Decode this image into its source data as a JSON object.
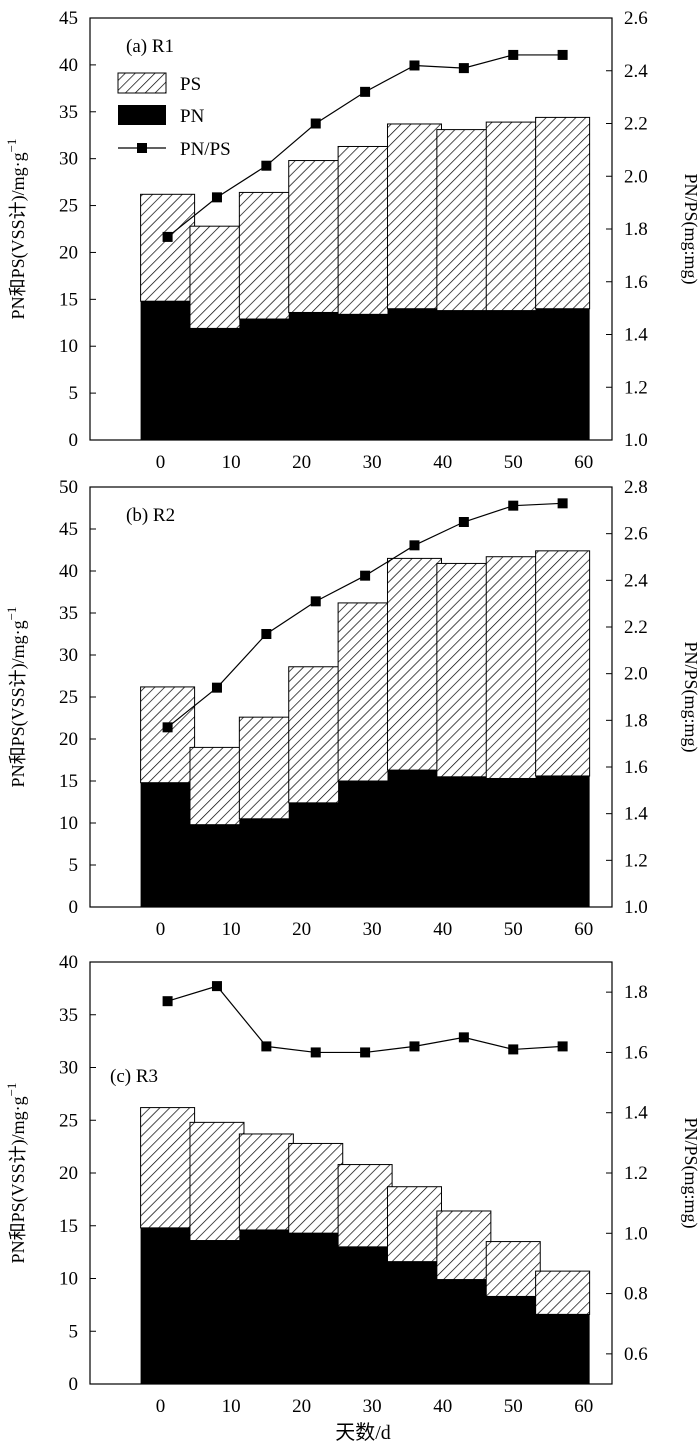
{
  "figure": {
    "x_axis_title": "天数/d",
    "colors": {
      "ps_hatch": "#000000",
      "pn_fill": "#000000",
      "line": "#000000",
      "background": "#ffffff"
    }
  },
  "chart_data": [
    {
      "type": "bar",
      "panel_label": "(a) R1",
      "x": [
        1,
        8,
        15,
        22,
        29,
        36,
        43,
        50,
        57
      ],
      "series": [
        {
          "name": "PN",
          "kind": "bar-stack",
          "values": [
            14.8,
            11.9,
            12.9,
            13.6,
            13.4,
            14.0,
            13.8,
            13.8,
            14.0
          ]
        },
        {
          "name": "PS",
          "kind": "bar-stack",
          "values": [
            11.4,
            10.9,
            13.5,
            16.2,
            17.9,
            19.7,
            19.3,
            20.1,
            20.4
          ]
        },
        {
          "name": "PN/PS",
          "kind": "line",
          "axis": "right",
          "values": [
            1.77,
            1.92,
            2.04,
            2.2,
            2.32,
            2.42,
            2.41,
            2.46,
            2.46
          ]
        }
      ],
      "legend": [
        "PS",
        "PN",
        "PN/PS"
      ],
      "legend_position": "top-left",
      "xlabel": "",
      "ylabel": "PN和PS(VSS计)/mg·g",
      "ylabel_superscript": "−1",
      "y2label": "PN/PS(mg:mg)",
      "xlim": [
        -10,
        64
      ],
      "xticks": [
        0,
        10,
        20,
        30,
        40,
        50,
        60
      ],
      "ylim": [
        0,
        45
      ],
      "yticks": [
        0,
        5,
        10,
        15,
        20,
        25,
        30,
        35,
        40,
        45
      ],
      "y2lim": [
        1.0,
        2.6
      ],
      "y2ticks": [
        1.0,
        1.2,
        1.4,
        1.6,
        1.8,
        2.0,
        2.2,
        2.4,
        2.6
      ]
    },
    {
      "type": "bar",
      "panel_label": "(b) R2",
      "x": [
        1,
        8,
        15,
        22,
        29,
        36,
        43,
        50,
        57
      ],
      "series": [
        {
          "name": "PN",
          "kind": "bar-stack",
          "values": [
            14.8,
            9.8,
            10.5,
            12.4,
            15.0,
            16.3,
            15.5,
            15.3,
            15.6
          ]
        },
        {
          "name": "PS",
          "kind": "bar-stack",
          "values": [
            11.4,
            9.2,
            12.1,
            16.2,
            21.2,
            25.2,
            25.4,
            26.4,
            26.8
          ]
        },
        {
          "name": "PN/PS",
          "kind": "line",
          "axis": "right",
          "values": [
            1.77,
            1.94,
            2.17,
            2.31,
            2.42,
            2.55,
            2.65,
            2.72,
            2.73
          ]
        }
      ],
      "xlabel": "",
      "ylabel": "PN和PS(VSS计)/mg·g",
      "ylabel_superscript": "−1",
      "y2label": "PN/PS(mg:mg)",
      "xlim": [
        -10,
        64
      ],
      "xticks": [
        0,
        10,
        20,
        30,
        40,
        50,
        60
      ],
      "ylim": [
        0,
        50
      ],
      "yticks": [
        0,
        5,
        10,
        15,
        20,
        25,
        30,
        35,
        40,
        45,
        50
      ],
      "y2lim": [
        1.0,
        2.8
      ],
      "y2ticks": [
        1.0,
        1.2,
        1.4,
        1.6,
        1.8,
        2.0,
        2.2,
        2.4,
        2.6,
        2.8
      ]
    },
    {
      "type": "bar",
      "panel_label": "(c) R3",
      "x": [
        1,
        8,
        15,
        22,
        29,
        36,
        43,
        50,
        57
      ],
      "series": [
        {
          "name": "PN",
          "kind": "bar-stack",
          "values": [
            14.8,
            13.6,
            14.6,
            14.3,
            13.0,
            11.6,
            9.9,
            8.3,
            6.6
          ]
        },
        {
          "name": "PS",
          "kind": "bar-stack",
          "values": [
            11.4,
            11.2,
            9.1,
            8.5,
            7.8,
            7.1,
            6.5,
            5.2,
            4.1
          ]
        },
        {
          "name": "PN/PS",
          "kind": "line",
          "axis": "right",
          "values": [
            1.77,
            1.82,
            1.62,
            1.6,
            1.6,
            1.62,
            1.65,
            1.61,
            1.62
          ]
        }
      ],
      "xlabel": "天数/d",
      "ylabel": "PN和PS(VSS计)/mg·g",
      "ylabel_superscript": "−1",
      "y2label": "PN/PS(mg:mg)",
      "xlim": [
        -10,
        64
      ],
      "xticks": [
        0,
        10,
        20,
        30,
        40,
        50,
        60
      ],
      "ylim": [
        0,
        40
      ],
      "yticks": [
        0,
        5,
        10,
        15,
        20,
        25,
        30,
        35,
        40
      ],
      "y2lim": [
        0.5,
        1.9
      ],
      "y2ticks": [
        0.6,
        0.8,
        1.0,
        1.2,
        1.4,
        1.6,
        1.8
      ]
    }
  ]
}
